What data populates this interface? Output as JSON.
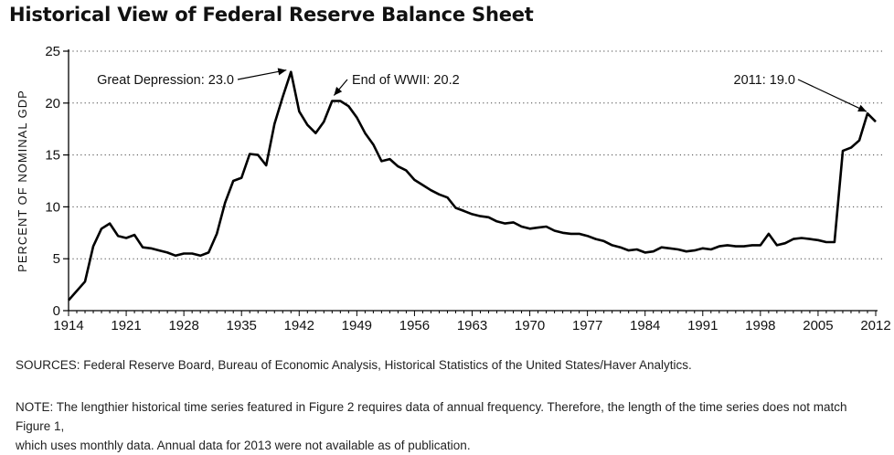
{
  "title": "Historical View of Federal Reserve Balance Sheet",
  "sources": "SOURCES: Federal Reserve Board, Bureau of Economic Analysis, Historical Statistics of the United States/Haver Analytics.",
  "note_line1": "NOTE:  The lengthier historical time series featured in Figure 2 requires data of annual frequency.  Therefore, the length of the time series does not match Figure 1,",
  "note_line2": "which uses monthly data.  Annual data for 2013 were not available as of publication.",
  "chart_data": {
    "type": "line",
    "title": "Historical View of Federal Reserve Balance Sheet",
    "xlabel": "",
    "ylabel": "PERCENT OF NOMINAL GDP",
    "xlim": [
      1914,
      2012
    ],
    "ylim": [
      0,
      25
    ],
    "x_ticks": [
      1914,
      1921,
      1928,
      1935,
      1942,
      1949,
      1956,
      1963,
      1970,
      1977,
      1984,
      1991,
      1998,
      2005,
      2012
    ],
    "y_ticks": [
      0,
      5,
      10,
      15,
      20,
      25
    ],
    "grid": "horizontal dotted",
    "legend": "none",
    "series": [
      {
        "x": [
          1914,
          1916,
          1917,
          1918,
          1919,
          1920,
          1921,
          1922,
          1923,
          1924,
          1925,
          1926,
          1927,
          1928,
          1929,
          1930,
          1931,
          1932,
          1933,
          1934,
          1935,
          1936,
          1937,
          1938,
          1939,
          1940,
          1941,
          1942,
          1943,
          1944,
          1945,
          1946,
          1947,
          1948,
          1949,
          1950,
          1951,
          1952,
          1953,
          1954,
          1955,
          1956,
          1957,
          1958,
          1959,
          1960,
          1961,
          1962,
          1963,
          1964,
          1965,
          1966,
          1967,
          1968,
          1969,
          1970,
          1971,
          1972,
          1973,
          1974,
          1975,
          1976,
          1977,
          1978,
          1979,
          1980,
          1981,
          1982,
          1983,
          1984,
          1985,
          1986,
          1987,
          1988,
          1989,
          1990,
          1991,
          1992,
          1993,
          1994,
          1995,
          1996,
          1997,
          1998,
          1999,
          2000,
          2001,
          2002,
          2003,
          2004,
          2005,
          2006,
          2007,
          2008,
          2009,
          2010,
          2011,
          2012
        ],
        "y": [
          1.0,
          2.8,
          6.2,
          7.9,
          8.4,
          7.2,
          7.0,
          7.3,
          6.1,
          6.0,
          5.8,
          5.6,
          5.3,
          5.5,
          5.5,
          5.3,
          5.6,
          7.4,
          10.4,
          12.5,
          12.8,
          15.1,
          15.0,
          14.0,
          18.0,
          20.6,
          23.0,
          19.2,
          17.9,
          17.1,
          18.2,
          20.2,
          20.2,
          19.7,
          18.6,
          17.1,
          16.0,
          14.4,
          14.6,
          13.9,
          13.5,
          12.6,
          12.1,
          11.6,
          11.2,
          10.9,
          9.9,
          9.6,
          9.3,
          9.1,
          9.0,
          8.6,
          8.4,
          8.5,
          8.1,
          7.9,
          8.0,
          8.1,
          7.7,
          7.5,
          7.4,
          7.4,
          7.2,
          6.9,
          6.7,
          6.3,
          6.1,
          5.8,
          5.9,
          5.6,
          5.7,
          6.1,
          6.0,
          5.9,
          5.7,
          5.8,
          6.0,
          5.9,
          6.2,
          6.3,
          6.2,
          6.2,
          6.3,
          6.3,
          7.4,
          6.3,
          6.5,
          6.9,
          7.0,
          6.9,
          6.8,
          6.6,
          6.6,
          15.4,
          15.7,
          16.4,
          19.0,
          18.2
        ]
      }
    ],
    "annotations": [
      {
        "text": "Great Depression: 23.0",
        "x": 1941,
        "y": 23.0
      },
      {
        "text": "End of WWII: 20.2",
        "x": 1946,
        "y": 20.2
      },
      {
        "text": "2011: 19.0",
        "x": 2011,
        "y": 19.0
      }
    ]
  }
}
